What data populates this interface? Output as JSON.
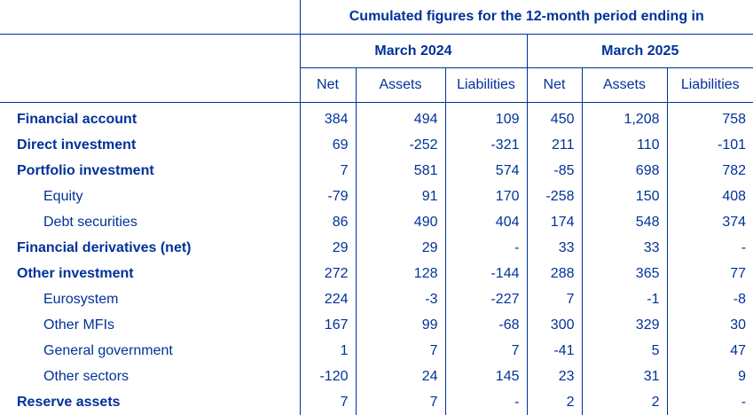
{
  "header": {
    "title": "Cumulated figures for the 12-month period ending in",
    "periods": [
      "March 2024",
      "March 2025"
    ],
    "subcolumns": [
      "Net",
      "Assets",
      "Liabilities",
      "Net",
      "Assets",
      "Liabilities"
    ]
  },
  "rows": [
    {
      "label": "Financial account",
      "style": "bold",
      "values": [
        "384",
        "494",
        "109",
        "450",
        "1,208",
        "758"
      ]
    },
    {
      "label": "Direct investment",
      "style": "bold",
      "values": [
        "69",
        "-252",
        "-321",
        "211",
        "110",
        "-101"
      ]
    },
    {
      "label": "Portfolio investment",
      "style": "bold",
      "values": [
        "7",
        "581",
        "574",
        "-85",
        "698",
        "782"
      ]
    },
    {
      "label": "Equity",
      "style": "indent",
      "values": [
        "-79",
        "91",
        "170",
        "-258",
        "150",
        "408"
      ]
    },
    {
      "label": "Debt securities",
      "style": "indent",
      "values": [
        "86",
        "490",
        "404",
        "174",
        "548",
        "374"
      ]
    },
    {
      "label": "Financial derivatives (net)",
      "style": "bold",
      "values": [
        "29",
        "29",
        "-",
        "33",
        "33",
        "-"
      ]
    },
    {
      "label": "Other investment",
      "style": "bold",
      "values": [
        "272",
        "128",
        "-144",
        "288",
        "365",
        "77"
      ]
    },
    {
      "label": "Eurosystem",
      "style": "indent",
      "values": [
        "224",
        "-3",
        "-227",
        "7",
        "-1",
        "-8"
      ]
    },
    {
      "label": "Other MFIs",
      "style": "indent",
      "values": [
        "167",
        "99",
        "-68",
        "300",
        "329",
        "30"
      ]
    },
    {
      "label": "General government",
      "style": "indent",
      "values": [
        "1",
        "7",
        "7",
        "-41",
        "5",
        "47"
      ]
    },
    {
      "label": "Other sectors",
      "style": "indent",
      "values": [
        "-120",
        "24",
        "145",
        "23",
        "31",
        "9"
      ]
    },
    {
      "label": "Reserve assets",
      "style": "bold",
      "values": [
        "7",
        "7",
        "-",
        "2",
        "2",
        "-"
      ]
    }
  ],
  "colors": {
    "text": "#003299",
    "rule": "#003299"
  }
}
